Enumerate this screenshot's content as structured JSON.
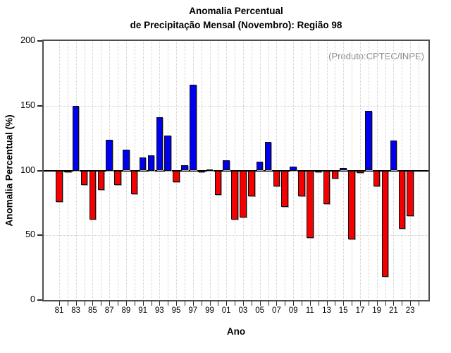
{
  "chart_data": {
    "type": "bar",
    "title": "Anomalia Percentual",
    "subtitle": "de Precipitação Mensal (Novembro): Região 98",
    "xlabel": "Ano",
    "ylabel": "Anomalia Percentual (%)",
    "annotation": "(Produto:CPTEC/INPE)",
    "ylim": [
      0,
      200
    ],
    "yticks": [
      0,
      50,
      100,
      150,
      200
    ],
    "baseline": 100,
    "grid": "dotted light-gray: vertical line per year, horizontal at 50 and 150; solid black line at 100",
    "legend_position": "none",
    "x_first_year": 1981,
    "x_last_tick_year": 2024,
    "x_label_step": 2,
    "x_tick_labels_shown": [
      "81",
      "83",
      "85",
      "87",
      "89",
      "91",
      "93",
      "95",
      "97",
      "99",
      "01",
      "03",
      "05",
      "07",
      "09",
      "11",
      "13",
      "15",
      "17",
      "19",
      "21",
      "23"
    ],
    "years": [
      1981,
      1982,
      1983,
      1984,
      1985,
      1986,
      1987,
      1988,
      1989,
      1990,
      1991,
      1992,
      1993,
      1994,
      1995,
      1996,
      1997,
      1998,
      1999,
      2000,
      2001,
      2002,
      2003,
      2004,
      2005,
      2006,
      2007,
      2008,
      2009,
      2010,
      2011,
      2012,
      2013,
      2014,
      2015,
      2016,
      2017,
      2018,
      2019,
      2020,
      2021,
      2022,
      2023
    ],
    "values": [
      76,
      99,
      150,
      89,
      62,
      85,
      124,
      89,
      116,
      82,
      110,
      112,
      141,
      127,
      91,
      104,
      166,
      99,
      101,
      81,
      108,
      62,
      64,
      80,
      107,
      122,
      88,
      72,
      103,
      80,
      48,
      99,
      74,
      94,
      102,
      47,
      98,
      146,
      88,
      18,
      123,
      55,
      65
    ],
    "colors": {
      "above_baseline": "#0000ee",
      "below_baseline": "#f40000",
      "bar_border": "#0d0d0d",
      "grid": "#cfcfcf",
      "frame": "#4e4e4e",
      "annotation_text": "#8a8a8a",
      "baseline_line": "#000000"
    }
  }
}
